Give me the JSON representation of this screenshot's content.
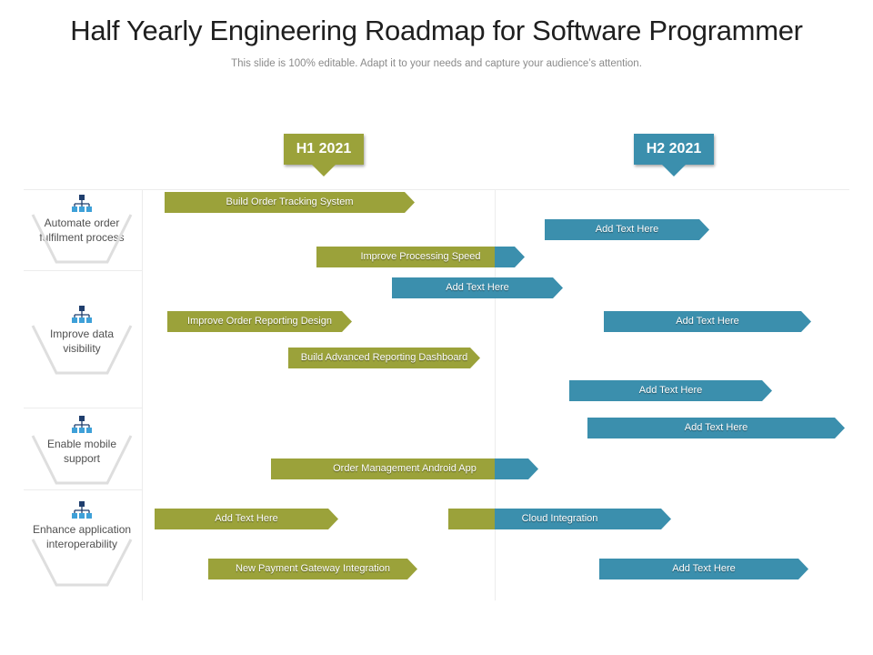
{
  "title": "Half Yearly Engineering Roadmap for Software Programmer",
  "subtitle": "This slide is 100% editable. Adapt it to your needs and capture your audience’s attention.",
  "colors": {
    "green": "#9ba23a",
    "blue": "#3b8fad"
  },
  "periods": [
    {
      "label": "H1 2021"
    },
    {
      "label": "H2 2021"
    }
  ],
  "categories": [
    {
      "label": "Automate order fulfilment process"
    },
    {
      "label": "Improve data visibility"
    },
    {
      "label": "Enable mobile support"
    },
    {
      "label": "Enhance application interoperability"
    }
  ],
  "tasks": [
    {
      "label": "Build Order Tracking System",
      "color": "green"
    },
    {
      "label": "Add Text Here",
      "color": "blue"
    },
    {
      "label": "Improve Processing Speed",
      "color": "green"
    },
    {
      "label": "Add Text Here",
      "color": "blue"
    },
    {
      "label": "Improve Order Reporting Design",
      "color": "green"
    },
    {
      "label": "Add Text Here",
      "color": "blue"
    },
    {
      "label": "Build Advanced Reporting Dashboard",
      "color": "green"
    },
    {
      "label": "Add Text Here",
      "color": "blue"
    },
    {
      "label": "Add Text Here",
      "color": "blue"
    },
    {
      "label": "Order Management Android App",
      "color": "green-blue"
    },
    {
      "label": "Add Text Here",
      "color": "green"
    },
    {
      "label": "Cloud Integration",
      "color": "green-blue"
    },
    {
      "label": "New Payment Gateway Integration",
      "color": "green"
    },
    {
      "label": "Add Text Here",
      "color": "blue"
    }
  ]
}
